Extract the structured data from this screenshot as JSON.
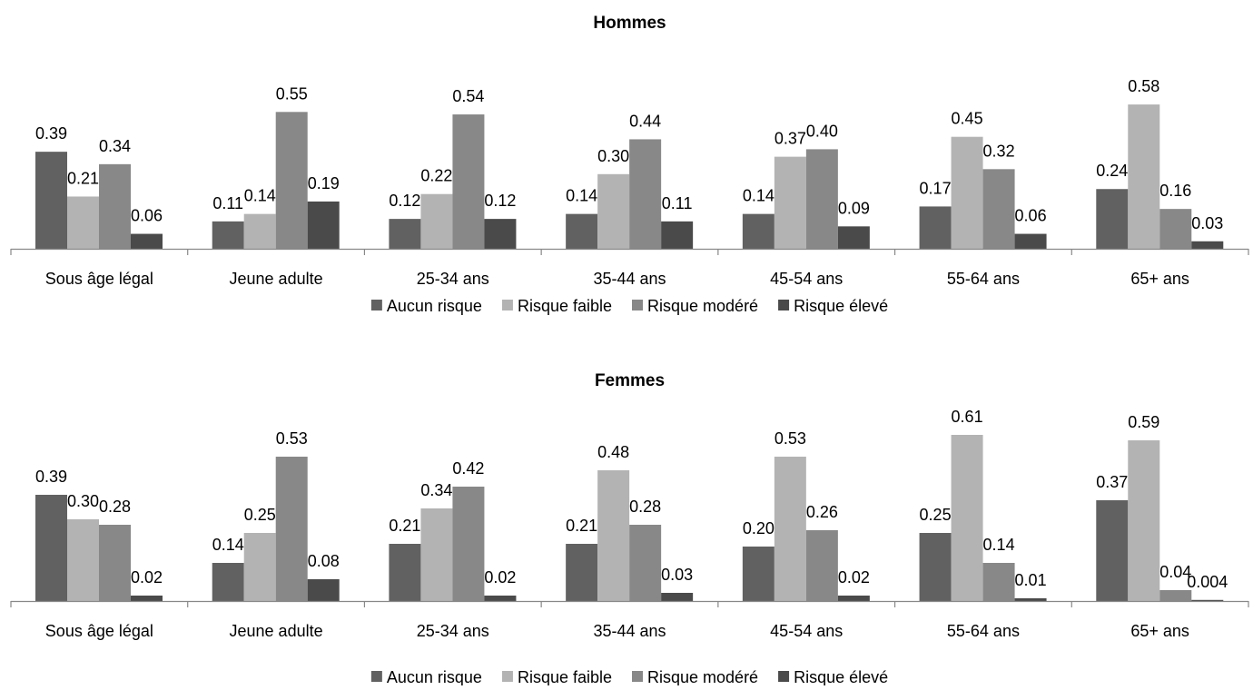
{
  "colors": {
    "Aucun risque": "#616161",
    "Risque faible": "#b3b3b3",
    "Risque modéré": "#888888",
    "Risque élevé": "#4a4a4a"
  },
  "chart_data": [
    {
      "type": "bar",
      "title": "Hommes",
      "categories": [
        "Sous âge légal",
        "Jeune adulte",
        "25-34 ans",
        "35-44 ans",
        "45-54 ans",
        "55-64 ans",
        "65+ ans"
      ],
      "series": [
        {
          "name": "Aucun risque",
          "values": [
            0.39,
            0.11,
            0.12,
            0.14,
            0.14,
            0.17,
            0.24
          ],
          "labels": [
            "0.39",
            "0.11",
            "0.12",
            "0.14",
            "0.14",
            "0.17",
            "0.24"
          ]
        },
        {
          "name": "Risque faible",
          "values": [
            0.21,
            0.14,
            0.22,
            0.3,
            0.37,
            0.45,
            0.58
          ],
          "labels": [
            "0.21",
            "0.14",
            "0.22",
            "0.30",
            "0.37",
            "0.45",
            "0.58"
          ]
        },
        {
          "name": "Risque modéré",
          "values": [
            0.34,
            0.55,
            0.54,
            0.44,
            0.4,
            0.32,
            0.16
          ],
          "labels": [
            "0.34",
            "0.55",
            "0.54",
            "0.44",
            "0.40",
            "0.32",
            "0.16"
          ]
        },
        {
          "name": "Risque élevé",
          "values": [
            0.06,
            0.19,
            0.12,
            0.11,
            0.09,
            0.06,
            0.03
          ],
          "labels": [
            "0.06",
            "0.19",
            "0.12",
            "0.11",
            "0.09",
            "0.06",
            "0.03"
          ]
        }
      ],
      "ylim": [
        0,
        0.62
      ],
      "grid": false,
      "legend": "bottom"
    },
    {
      "type": "bar",
      "title": "Femmes",
      "categories": [
        "Sous âge légal",
        "Jeune adulte",
        "25-34 ans",
        "35-44 ans",
        "45-54 ans",
        "55-64 ans",
        "65+ ans"
      ],
      "series": [
        {
          "name": "Aucun risque",
          "values": [
            0.39,
            0.14,
            0.21,
            0.21,
            0.2,
            0.25,
            0.37
          ],
          "labels": [
            "0.39",
            "0.14",
            "0.21",
            "0.21",
            "0.20",
            "0.25",
            "0.37"
          ]
        },
        {
          "name": "Risque faible",
          "values": [
            0.3,
            0.25,
            0.34,
            0.48,
            0.53,
            0.61,
            0.59
          ],
          "labels": [
            "0.30",
            "0.25",
            "0.34",
            "0.48",
            "0.53",
            "0.61",
            "0.59"
          ]
        },
        {
          "name": "Risque modéré",
          "values": [
            0.28,
            0.53,
            0.42,
            0.28,
            0.26,
            0.14,
            0.04
          ],
          "labels": [
            "0.28",
            "0.53",
            "0.42",
            "0.28",
            "0.26",
            "0.14",
            "0.04"
          ]
        },
        {
          "name": "Risque élevé",
          "values": [
            0.02,
            0.08,
            0.02,
            0.03,
            0.02,
            0.01,
            0.004
          ],
          "labels": [
            "0.02",
            "0.08",
            "0.02",
            "0.03",
            "0.02",
            "0.01",
            "0.004"
          ]
        }
      ],
      "ylim": [
        0,
        0.62
      ],
      "grid": false,
      "legend": "bottom"
    }
  ]
}
